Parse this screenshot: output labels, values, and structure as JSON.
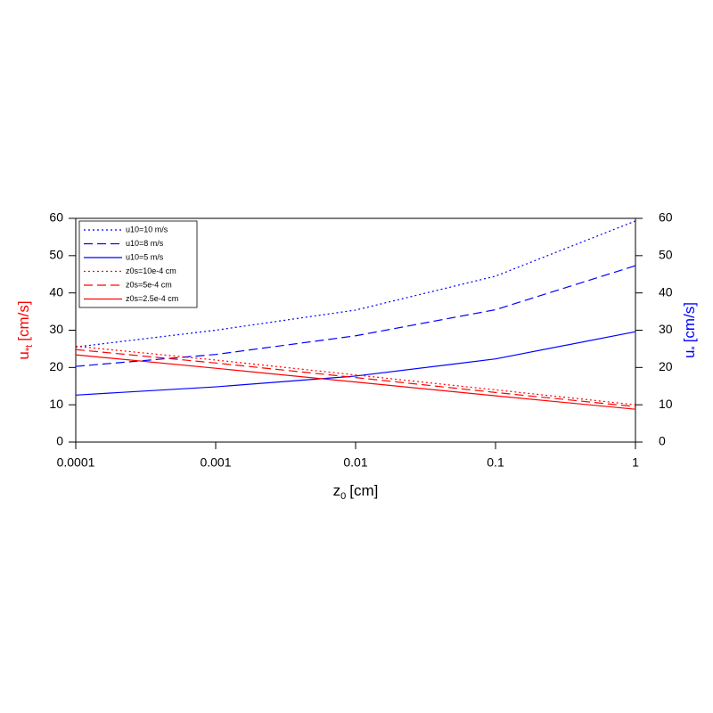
{
  "chart_data": {
    "type": "line",
    "xlabel": {
      "base": "z",
      "sub": "0",
      "unit": "[cm]"
    },
    "ylabel": {
      "base": "u",
      "sub": "*t",
      "unit": "[cm/s]",
      "color": "#ff0000"
    },
    "y2label": {
      "base": "u",
      "sub": "*",
      "unit": "[cm/s]",
      "color": "#0000ff"
    },
    "xscale": "log",
    "x": [
      0.0001,
      0.001,
      0.01,
      0.1,
      1
    ],
    "xlim": [
      0.0001,
      1
    ],
    "xticks": [
      0.0001,
      0.001,
      0.01,
      0.1,
      1
    ],
    "ylim": [
      0,
      60
    ],
    "yticks": [
      0,
      10,
      20,
      30,
      40,
      50,
      60
    ],
    "y2lim": [
      0,
      60
    ],
    "y2ticks": [
      0,
      10,
      20,
      30,
      40,
      50,
      60
    ],
    "legend": "top-left",
    "series": [
      {
        "name": "u10=10 m/s",
        "color": "#0000ff",
        "linestyle": "dotted",
        "axis": "y2",
        "values": [
          25.5,
          30.0,
          35.4,
          44.5,
          59.3
        ]
      },
      {
        "name": "u10=8 m/s",
        "color": "#0000ff",
        "linestyle": "dashed",
        "axis": "y2",
        "values": [
          20.3,
          23.5,
          28.5,
          35.5,
          47.3
        ]
      },
      {
        "name": "u10=5 m/s",
        "color": "#0000ff",
        "linestyle": "solid",
        "axis": "y2",
        "values": [
          12.6,
          14.8,
          17.7,
          22.3,
          29.6
        ]
      },
      {
        "name": "z0s=10e-4 cm",
        "color": "#ff0000",
        "linestyle": "dotted",
        "values": [
          25.7,
          22.0,
          18.0,
          14.0,
          10.0
        ]
      },
      {
        "name": "z0s=5e-4 cm",
        "color": "#ff0000",
        "linestyle": "dashed",
        "values": [
          24.8,
          21.2,
          17.3,
          13.3,
          9.5
        ]
      },
      {
        "name": "z0s=2.5e-4 cm",
        "color": "#ff0000",
        "linestyle": "solid",
        "values": [
          23.4,
          19.8,
          16.1,
          12.4,
          8.8
        ]
      }
    ]
  }
}
